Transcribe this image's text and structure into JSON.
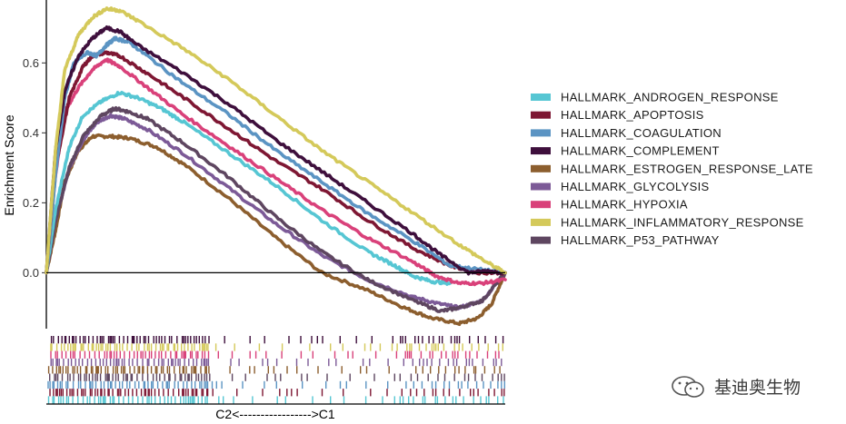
{
  "chart_data": {
    "type": "line",
    "title": "",
    "ylabel": "Enrichment Score",
    "xlabel": "C2<----------------->C1",
    "ylim": [
      -0.16,
      0.78
    ],
    "xlim": [
      0,
      1
    ],
    "yticks": [
      "0.0",
      "0.2",
      "0.4",
      "0.6"
    ],
    "yticks_values": [
      0.0,
      0.2,
      0.4,
      0.6
    ],
    "series": [
      {
        "name": "HALLMARK_ANDROGEN_RESPONSE",
        "color": "#56C6D3",
        "points": [
          [
            0,
            0
          ],
          [
            0.02,
            0.18
          ],
          [
            0.05,
            0.36
          ],
          [
            0.08,
            0.45
          ],
          [
            0.12,
            0.49
          ],
          [
            0.16,
            0.515
          ],
          [
            0.2,
            0.5
          ],
          [
            0.25,
            0.47
          ],
          [
            0.3,
            0.43
          ],
          [
            0.4,
            0.34
          ],
          [
            0.5,
            0.25
          ],
          [
            0.6,
            0.15
          ],
          [
            0.7,
            0.06
          ],
          [
            0.76,
            0.02
          ],
          [
            0.8,
            -0.01
          ],
          [
            0.84,
            -0.025
          ],
          [
            0.88,
            -0.03
          ]
        ]
      },
      {
        "name": "HALLMARK_APOPTOSIS",
        "color": "#7E1733",
        "points": [
          [
            0,
            0
          ],
          [
            0.02,
            0.3
          ],
          [
            0.05,
            0.5
          ],
          [
            0.08,
            0.59
          ],
          [
            0.1,
            0.62
          ],
          [
            0.13,
            0.63
          ],
          [
            0.16,
            0.62
          ],
          [
            0.22,
            0.57
          ],
          [
            0.3,
            0.5
          ],
          [
            0.4,
            0.41
          ],
          [
            0.5,
            0.32
          ],
          [
            0.6,
            0.24
          ],
          [
            0.7,
            0.15
          ],
          [
            0.8,
            0.07
          ],
          [
            0.88,
            0.02
          ],
          [
            0.94,
            0.0
          ],
          [
            1.0,
            0.0
          ]
        ]
      },
      {
        "name": "HALLMARK_COAGULATION",
        "color": "#5B94C3",
        "points": [
          [
            0,
            0
          ],
          [
            0.02,
            0.28
          ],
          [
            0.04,
            0.5
          ],
          [
            0.06,
            0.6
          ],
          [
            0.09,
            0.63
          ],
          [
            0.11,
            0.62
          ],
          [
            0.13,
            0.65
          ],
          [
            0.15,
            0.67
          ],
          [
            0.18,
            0.66
          ],
          [
            0.22,
            0.62
          ],
          [
            0.3,
            0.54
          ],
          [
            0.4,
            0.45
          ],
          [
            0.5,
            0.35
          ],
          [
            0.6,
            0.26
          ],
          [
            0.7,
            0.17
          ],
          [
            0.8,
            0.09
          ],
          [
            0.88,
            0.02
          ],
          [
            0.94,
            0.01
          ],
          [
            1.0,
            0.0
          ]
        ]
      },
      {
        "name": "HALLMARK_COMPLEMENT",
        "color": "#3E0F3C",
        "points": [
          [
            0,
            0
          ],
          [
            0.02,
            0.35
          ],
          [
            0.04,
            0.52
          ],
          [
            0.07,
            0.62
          ],
          [
            0.1,
            0.67
          ],
          [
            0.13,
            0.7
          ],
          [
            0.16,
            0.69
          ],
          [
            0.2,
            0.65
          ],
          [
            0.3,
            0.57
          ],
          [
            0.4,
            0.48
          ],
          [
            0.5,
            0.38
          ],
          [
            0.6,
            0.29
          ],
          [
            0.7,
            0.2
          ],
          [
            0.8,
            0.11
          ],
          [
            0.86,
            0.05
          ],
          [
            0.92,
            0.0
          ],
          [
            0.96,
            0.005
          ],
          [
            1.0,
            0.0
          ]
        ]
      },
      {
        "name": "HALLMARK_ESTROGEN_RESPONSE_LATE",
        "color": "#8C5E2E",
        "points": [
          [
            0,
            0
          ],
          [
            0.02,
            0.12
          ],
          [
            0.04,
            0.26
          ],
          [
            0.07,
            0.35
          ],
          [
            0.1,
            0.39
          ],
          [
            0.14,
            0.39
          ],
          [
            0.18,
            0.385
          ],
          [
            0.24,
            0.36
          ],
          [
            0.3,
            0.31
          ],
          [
            0.4,
            0.21
          ],
          [
            0.5,
            0.1
          ],
          [
            0.6,
            0.0
          ],
          [
            0.7,
            -0.05
          ],
          [
            0.78,
            -0.1
          ],
          [
            0.84,
            -0.13
          ],
          [
            0.9,
            -0.145
          ],
          [
            0.94,
            -0.13
          ],
          [
            0.97,
            -0.09
          ],
          [
            1.0,
            0.0
          ]
        ]
      },
      {
        "name": "HALLMARK_GLYCOLYSIS",
        "color": "#7C5A97",
        "points": [
          [
            0,
            0
          ],
          [
            0.02,
            0.15
          ],
          [
            0.05,
            0.3
          ],
          [
            0.08,
            0.38
          ],
          [
            0.11,
            0.43
          ],
          [
            0.14,
            0.45
          ],
          [
            0.17,
            0.44
          ],
          [
            0.22,
            0.41
          ],
          [
            0.3,
            0.34
          ],
          [
            0.4,
            0.24
          ],
          [
            0.5,
            0.14
          ],
          [
            0.6,
            0.05
          ],
          [
            0.7,
            -0.02
          ],
          [
            0.8,
            -0.07
          ],
          [
            0.86,
            -0.09
          ],
          [
            0.9,
            -0.1
          ],
          [
            0.95,
            -0.08
          ],
          [
            1.0,
            0.0
          ]
        ]
      },
      {
        "name": "HALLMARK_HYPOXIA",
        "color": "#D9417A",
        "points": [
          [
            0,
            0
          ],
          [
            0.02,
            0.28
          ],
          [
            0.04,
            0.46
          ],
          [
            0.07,
            0.53
          ],
          [
            0.1,
            0.58
          ],
          [
            0.13,
            0.61
          ],
          [
            0.16,
            0.59
          ],
          [
            0.22,
            0.53
          ],
          [
            0.3,
            0.45
          ],
          [
            0.4,
            0.36
          ],
          [
            0.5,
            0.27
          ],
          [
            0.6,
            0.18
          ],
          [
            0.7,
            0.1
          ],
          [
            0.8,
            0.03
          ],
          [
            0.85,
            -0.01
          ],
          [
            0.9,
            -0.03
          ],
          [
            0.95,
            -0.03
          ],
          [
            1.0,
            -0.02
          ]
        ]
      },
      {
        "name": "HALLMARK_INFLAMMATORY_RESPONSE",
        "color": "#D4C95A",
        "points": [
          [
            0,
            0
          ],
          [
            0.02,
            0.35
          ],
          [
            0.04,
            0.58
          ],
          [
            0.07,
            0.68
          ],
          [
            0.1,
            0.73
          ],
          [
            0.13,
            0.755
          ],
          [
            0.16,
            0.75
          ],
          [
            0.2,
            0.72
          ],
          [
            0.3,
            0.64
          ],
          [
            0.4,
            0.55
          ],
          [
            0.5,
            0.45
          ],
          [
            0.6,
            0.35
          ],
          [
            0.7,
            0.26
          ],
          [
            0.8,
            0.17
          ],
          [
            0.9,
            0.08
          ],
          [
            0.96,
            0.03
          ],
          [
            1.0,
            0.0
          ]
        ]
      },
      {
        "name": "HALLMARK_P53_PATHWAY",
        "color": "#5E4660",
        "points": [
          [
            0,
            0
          ],
          [
            0.02,
            0.15
          ],
          [
            0.05,
            0.3
          ],
          [
            0.08,
            0.39
          ],
          [
            0.12,
            0.45
          ],
          [
            0.15,
            0.47
          ],
          [
            0.18,
            0.46
          ],
          [
            0.22,
            0.44
          ],
          [
            0.3,
            0.37
          ],
          [
            0.4,
            0.27
          ],
          [
            0.5,
            0.16
          ],
          [
            0.6,
            0.06
          ],
          [
            0.7,
            -0.02
          ],
          [
            0.8,
            -0.08
          ],
          [
            0.86,
            -0.11
          ],
          [
            0.9,
            -0.1
          ],
          [
            0.95,
            -0.08
          ],
          [
            1.0,
            0.0
          ]
        ]
      }
    ]
  },
  "watermark": {
    "text": "基迪奥生物",
    "icon": "wechat-icon"
  }
}
